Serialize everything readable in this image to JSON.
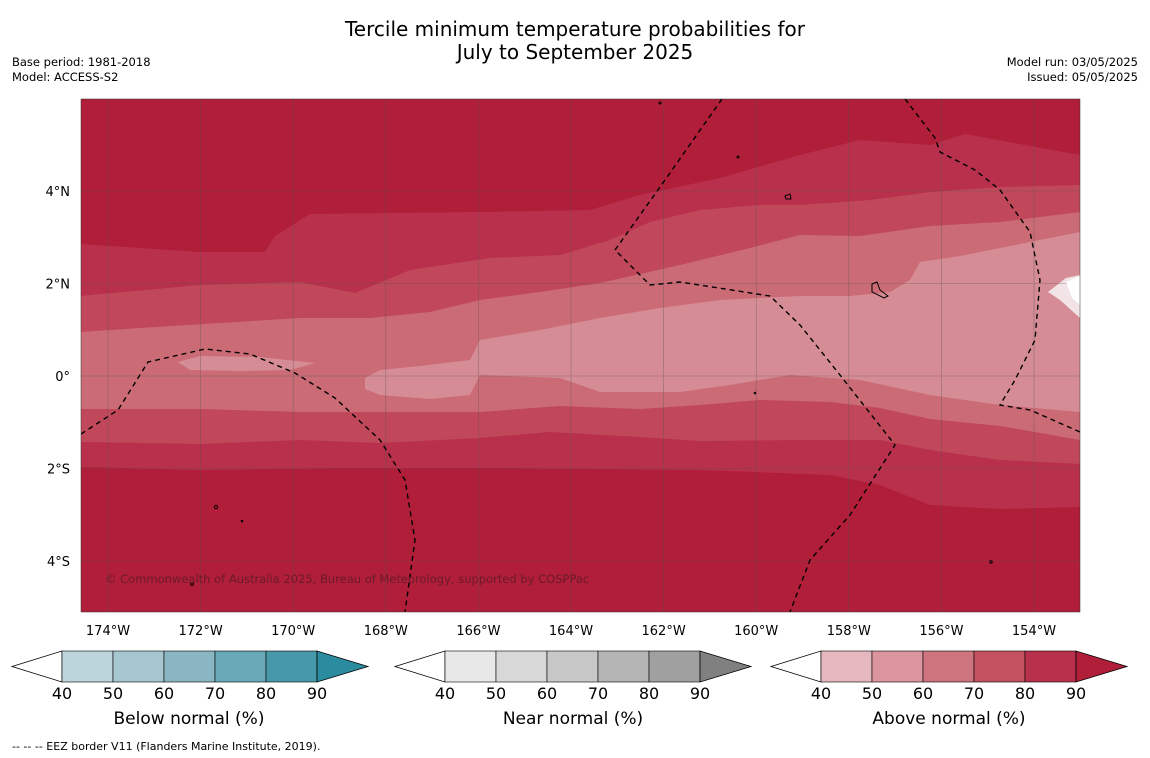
{
  "header": {
    "title_line1": "Tercile minimum temperature probabilities for",
    "title_line2": "July to September 2025",
    "base_period": "Base period: 1981-2018",
    "model": "Model: ACCESS-S2",
    "model_run": "Model run: 03/05/2025",
    "issued": "Issued: 05/05/2025"
  },
  "map": {
    "lon_ticks": [
      "174°W",
      "172°W",
      "170°W",
      "168°W",
      "166°W",
      "164°W",
      "162°W",
      "160°W",
      "158°W",
      "156°W",
      "154°W"
    ],
    "lat_ticks": [
      "4°N",
      "2°N",
      "0°",
      "2°S",
      "4°S"
    ],
    "copyright": "© Commonwealth of Australia 2025, Bureau of Meteorology, supported by COSPPac",
    "band_colors": [
      "#b01e39",
      "#b8304b",
      "#c0485a",
      "#cb6b75",
      "#d68c95",
      "#f1e3e6"
    ]
  },
  "colorbars": [
    {
      "label": "Below normal (%)",
      "ticks": [
        "40",
        "50",
        "60",
        "70",
        "80",
        "90"
      ],
      "colors": [
        "#ffffff",
        "#bcd4db",
        "#a6c7cf",
        "#89b6c2",
        "#6aa9b7",
        "#4798a8",
        "#2a8c9e"
      ]
    },
    {
      "label": "Near normal (%)",
      "ticks": [
        "40",
        "50",
        "60",
        "70",
        "80",
        "90"
      ],
      "colors": [
        "#ffffff",
        "#e8e8e8",
        "#d8d8d8",
        "#c8c8c8",
        "#b5b5b5",
        "#a0a0a0",
        "#808080"
      ]
    },
    {
      "label": "Above normal (%)",
      "ticks": [
        "40",
        "50",
        "60",
        "70",
        "80",
        "90"
      ],
      "colors": [
        "#ffffff",
        "#e5b8bf",
        "#da959e",
        "#cd747e",
        "#c35260",
        "#b8304b",
        "#b01e39"
      ]
    }
  ],
  "footnote": "--  --  -- EEZ border V11 (Flanders Marine Institute, 2019)."
}
